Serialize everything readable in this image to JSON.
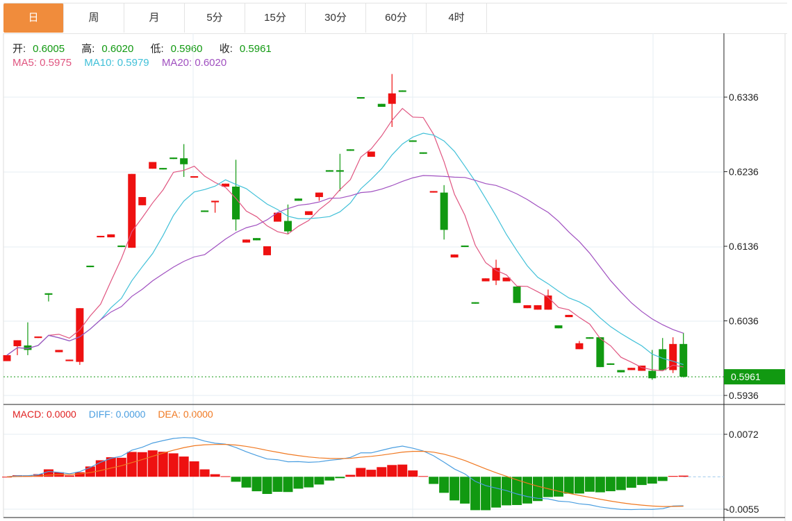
{
  "tabs": [
    {
      "label": "日",
      "active": true
    },
    {
      "label": "周"
    },
    {
      "label": "月"
    },
    {
      "label": "5分"
    },
    {
      "label": "15分"
    },
    {
      "label": "30分"
    },
    {
      "label": "60分"
    },
    {
      "label": "4时"
    }
  ],
  "ohlc_legend": {
    "open_label": "开:",
    "open": "0.6005",
    "high_label": "高:",
    "high": "0.6020",
    "low_label": "低:",
    "low": "0.5960",
    "close_label": "收:",
    "close": "0.5961"
  },
  "ma_legend": {
    "ma5": "MA5: 0.5975",
    "ma10": "MA10: 0.5979",
    "ma20": "MA20: 0.6020"
  },
  "macd_legend": {
    "macd": "MACD: 0.0000",
    "diff": "DIFF: 0.0000",
    "dea": "DEA: 0.0000"
  },
  "colors": {
    "up": "#ee1111",
    "down": "#119911",
    "ma5": "#e05580",
    "ma10": "#40c0d8",
    "ma20": "#a050c0",
    "diff": "#4a9ee0",
    "dea": "#f07820",
    "tab_active": "#f08c3c"
  },
  "chart_data": {
    "type": "candlestick",
    "price_axis": {
      "ticks": [
        "0.6336",
        "0.6236",
        "0.6136",
        "0.6036",
        "0.5936"
      ],
      "range": [
        0.5936,
        0.6336
      ]
    },
    "last_price": "0.5961",
    "macd_axis": {
      "ticks": [
        "0.0072",
        "-0.0055"
      ],
      "range": [
        -0.0055,
        0.0072
      ]
    },
    "candles": [
      [
        0.5982,
        0.599,
        0.5982,
        0.599
      ],
      [
        0.6002,
        0.601,
        0.599,
        0.601
      ],
      [
        0.6003,
        0.6034,
        0.599,
        0.5997
      ],
      [
        0.6013,
        0.6015,
        0.6013,
        0.6015
      ],
      [
        0.6073,
        0.6073,
        0.6062,
        0.6071
      ],
      [
        0.5994,
        0.5997,
        0.5994,
        0.5997
      ],
      [
        0.5982,
        0.5984,
        0.5982,
        0.5984
      ],
      [
        0.5981,
        0.6053,
        0.5977,
        0.6053
      ],
      [
        0.611,
        0.611,
        0.6108,
        0.6108
      ],
      [
        0.6148,
        0.615,
        0.6148,
        0.615
      ],
      [
        0.6148,
        0.6152,
        0.6148,
        0.6152
      ],
      [
        0.6137,
        0.6137,
        0.6135,
        0.6135
      ],
      [
        0.6134,
        0.6233,
        0.6134,
        0.6233
      ],
      [
        0.6191,
        0.6202,
        0.6191,
        0.6202
      ],
      [
        0.624,
        0.6249,
        0.624,
        0.6249
      ],
      [
        0.6241,
        0.6241,
        0.6239,
        0.6239
      ],
      [
        0.6255,
        0.6255,
        0.6253,
        0.6253
      ],
      [
        0.6254,
        0.6273,
        0.6229,
        0.6246
      ],
      [
        0.6228,
        0.623,
        0.6228,
        0.623
      ],
      [
        0.6184,
        0.6184,
        0.6182,
        0.6182
      ],
      [
        0.6195,
        0.6197,
        0.6181,
        0.6197
      ],
      [
        0.6216,
        0.622,
        0.6216,
        0.622
      ],
      [
        0.6216,
        0.6252,
        0.6157,
        0.6172
      ],
      [
        0.6141,
        0.6145,
        0.6141,
        0.6145
      ],
      [
        0.6147,
        0.6147,
        0.6144,
        0.6144
      ],
      [
        0.6124,
        0.6136,
        0.6124,
        0.6136
      ],
      [
        0.6169,
        0.6181,
        0.6169,
        0.6181
      ],
      [
        0.617,
        0.6192,
        0.6152,
        0.6156
      ],
      [
        0.62,
        0.62,
        0.6197,
        0.6197
      ],
      [
        0.6178,
        0.6183,
        0.6178,
        0.6183
      ],
      [
        0.6202,
        0.6208,
        0.6197,
        0.6208
      ],
      [
        0.6238,
        0.6238,
        0.6236,
        0.6236
      ],
      [
        0.6238,
        0.626,
        0.621,
        0.6236
      ],
      [
        0.6266,
        0.6266,
        0.6264,
        0.6264
      ],
      [
        0.6336,
        0.6336,
        0.6334,
        0.6334
      ],
      [
        0.6256,
        0.6263,
        0.6256,
        0.6263
      ],
      [
        0.6327,
        0.6327,
        0.6323,
        0.6323
      ],
      [
        0.6327,
        0.6367,
        0.6296,
        0.6341
      ],
      [
        0.6345,
        0.6345,
        0.6343,
        0.6343
      ],
      [
        0.6278,
        0.6278,
        0.6276,
        0.6276
      ],
      [
        0.6262,
        0.6262,
        0.626,
        0.626
      ],
      [
        0.6208,
        0.621,
        0.6208,
        0.621
      ],
      [
        0.6208,
        0.6218,
        0.6145,
        0.6158
      ],
      [
        0.6121,
        0.6125,
        0.6121,
        0.6125
      ],
      [
        0.6137,
        0.6137,
        0.6135,
        0.6135
      ],
      [
        0.6061,
        0.6061,
        0.6059,
        0.6059
      ],
      [
        0.6089,
        0.6093,
        0.6089,
        0.6093
      ],
      [
        0.609,
        0.6118,
        0.6084,
        0.6107
      ],
      [
        0.6089,
        0.6094,
        0.6089,
        0.6094
      ],
      [
        0.6082,
        0.6082,
        0.606,
        0.606
      ],
      [
        0.6053,
        0.6057,
        0.6053,
        0.6057
      ],
      [
        0.6051,
        0.6057,
        0.6051,
        0.6057
      ],
      [
        0.6051,
        0.6078,
        0.6051,
        0.607
      ],
      [
        0.603,
        0.603,
        0.6026,
        0.6026
      ],
      [
        0.6041,
        0.6044,
        0.6041,
        0.6044
      ],
      [
        0.5998,
        0.6009,
        0.5998,
        0.6006
      ],
      [
        0.6014,
        0.6014,
        0.6012,
        0.6012
      ],
      [
        0.6014,
        0.6014,
        0.5974,
        0.5974
      ],
      [
        0.5979,
        0.5979,
        0.5977,
        0.5977
      ],
      [
        0.597,
        0.597,
        0.5967,
        0.5967
      ],
      [
        0.597,
        0.5973,
        0.597,
        0.5973
      ],
      [
        0.5969,
        0.5976,
        0.5969,
        0.5976
      ],
      [
        0.5969,
        0.5997,
        0.5957,
        0.5959
      ],
      [
        0.5998,
        0.6013,
        0.597,
        0.597
      ],
      [
        0.597,
        0.6014,
        0.5966,
        0.6005
      ],
      [
        0.6005,
        0.602,
        0.596,
        0.5961
      ]
    ]
  }
}
